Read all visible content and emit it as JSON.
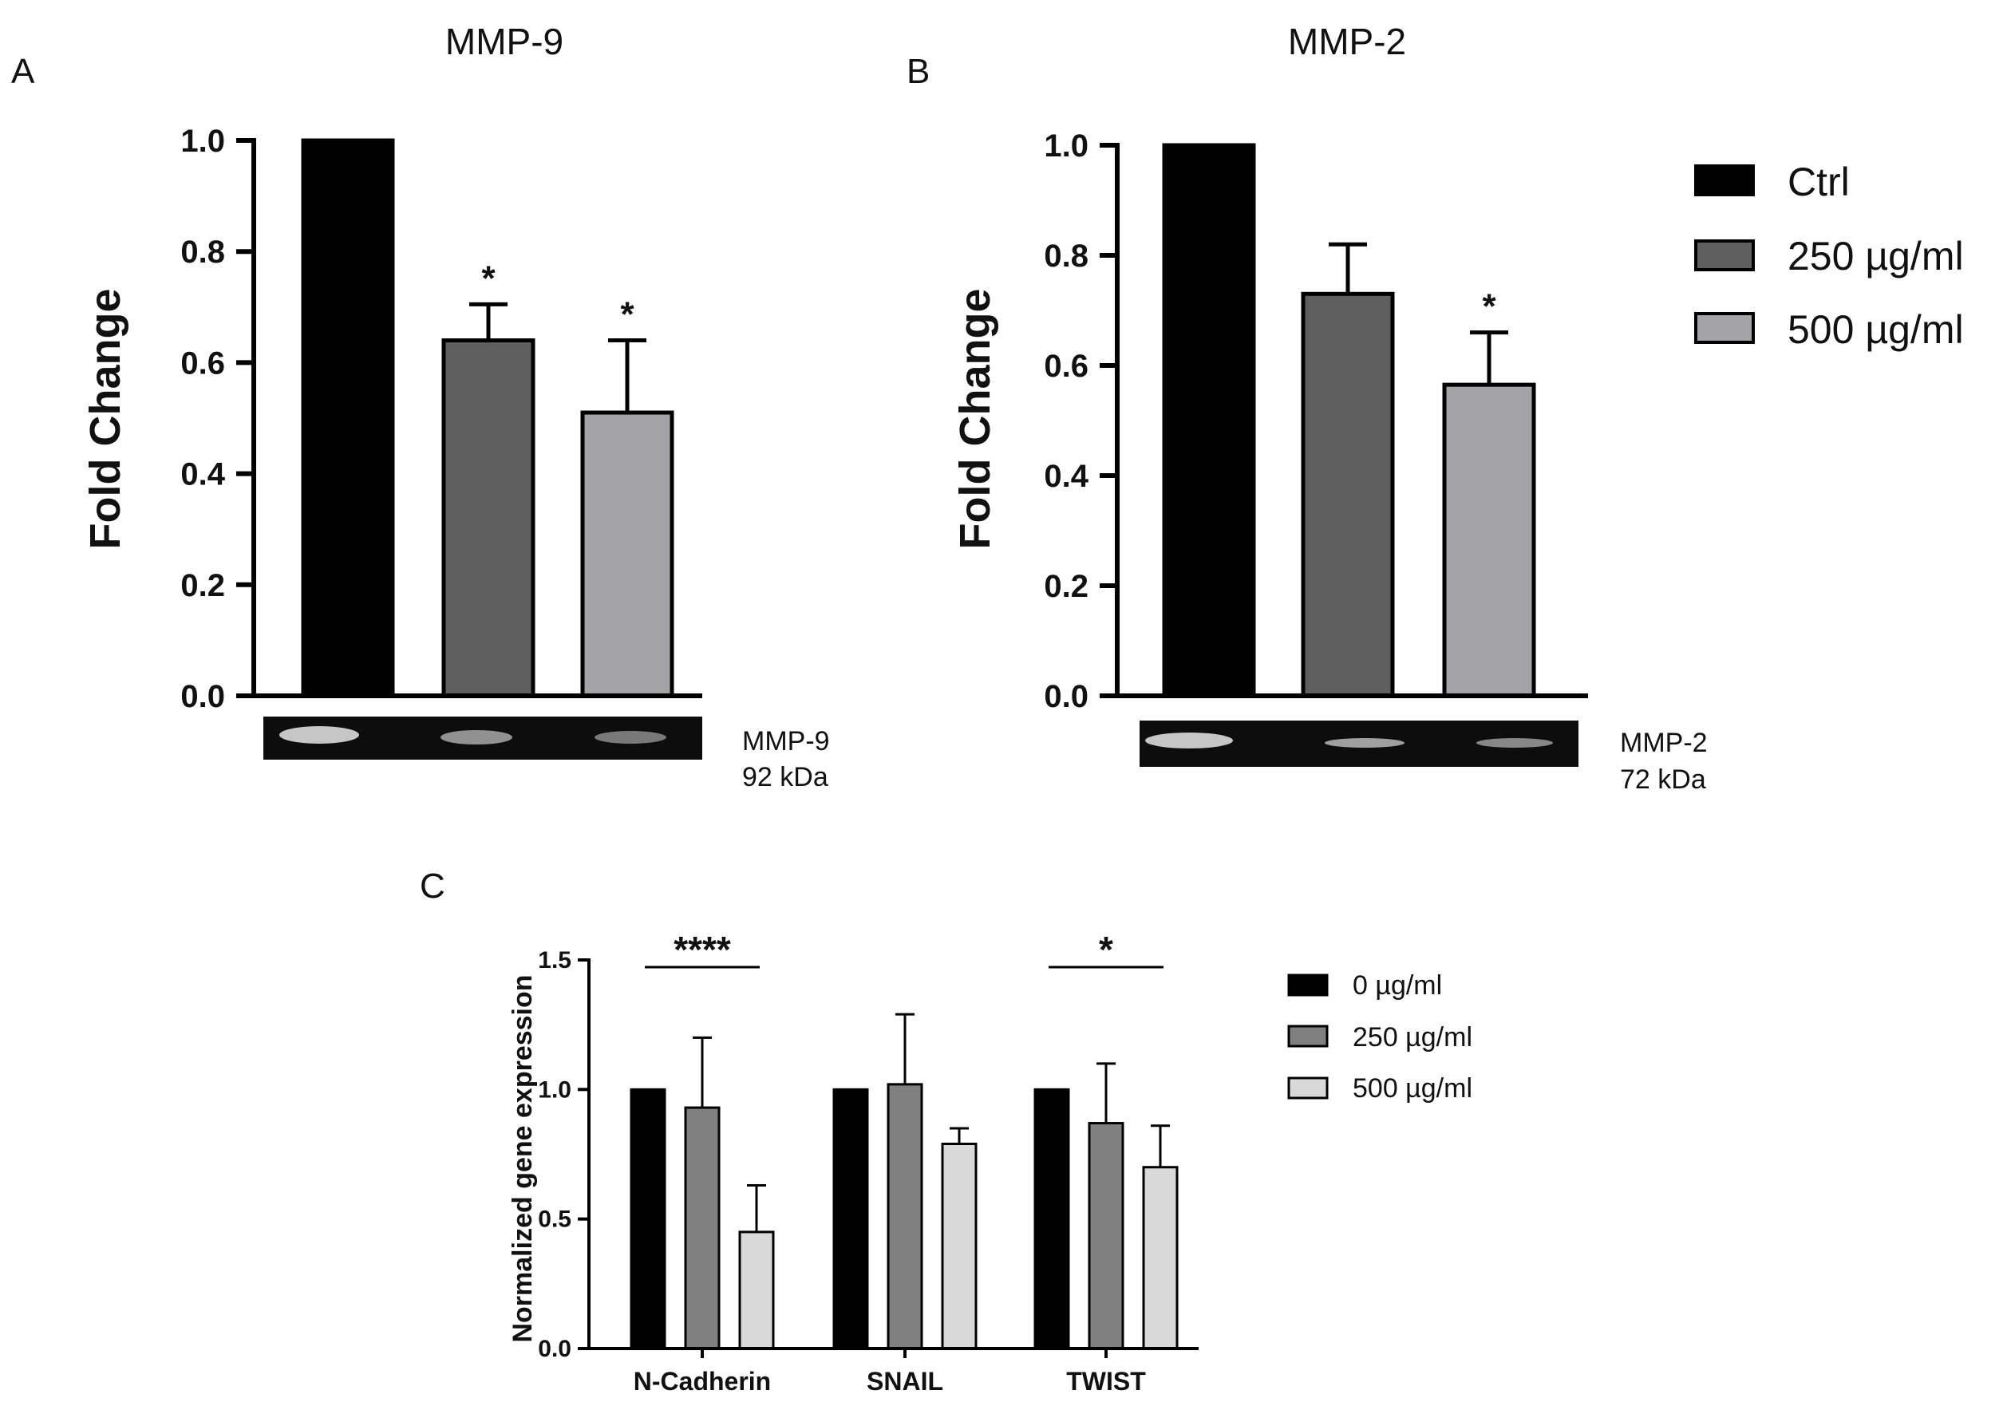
{
  "chart_data": [
    {
      "panel": "A",
      "type": "bar",
      "title": "MMP-9",
      "xlabel": "",
      "ylabel": "Fold Change",
      "ylim": [
        0,
        1.0
      ],
      "yticks": [
        "0.0",
        "0.2",
        "0.4",
        "0.6",
        "0.8",
        "1.0"
      ],
      "categories": [
        "Ctrl",
        "250 µg/ml",
        "500 µg/ml"
      ],
      "values": [
        1.0,
        0.64,
        0.51
      ],
      "errors": [
        0,
        0.065,
        0.13
      ],
      "significance": [
        "",
        "*",
        "*"
      ],
      "colors": [
        "#000000",
        "#5f5f5f",
        "#a3a3a8"
      ],
      "blot": {
        "label": "MMP-9",
        "size": "92 kDa"
      }
    },
    {
      "panel": "B",
      "type": "bar",
      "title": "MMP-2",
      "xlabel": "",
      "ylabel": "Fold Change",
      "ylim": [
        0,
        1.0
      ],
      "yticks": [
        "0.0",
        "0.2",
        "0.4",
        "0.6",
        "0.8",
        "1.0"
      ],
      "categories": [
        "Ctrl",
        "250 µg/ml",
        "500 µg/ml"
      ],
      "values": [
        1.0,
        0.73,
        0.565
      ],
      "errors": [
        0,
        0.09,
        0.095
      ],
      "significance": [
        "",
        "",
        "*"
      ],
      "colors": [
        "#000000",
        "#5f5f5f",
        "#a3a3a8"
      ],
      "blot": {
        "label": "MMP-2",
        "size": "72 kDa"
      },
      "legend": [
        "Ctrl",
        "250 µg/ml",
        "500 µg/ml"
      ],
      "legend_placement": "right"
    },
    {
      "panel": "C",
      "type": "bar",
      "title": "",
      "xlabel": "",
      "ylabel": "Normalized gene expression",
      "ylim": [
        0,
        1.5
      ],
      "yticks": [
        "0.0",
        "0.5",
        "1.0",
        "1.5"
      ],
      "categories": [
        "N-Cadherin",
        "SNAIL",
        "TWIST"
      ],
      "series": [
        {
          "name": "0 µg/ml",
          "values": [
            1.0,
            1.0,
            1.0
          ],
          "errors": [
            0,
            0,
            0
          ],
          "color": "#000000"
        },
        {
          "name": "250 µg/ml",
          "values": [
            0.93,
            1.02,
            0.87
          ],
          "errors": [
            0.27,
            0.27,
            0.23
          ],
          "color": "#808080"
        },
        {
          "name": "500 µg/ml",
          "values": [
            0.45,
            0.79,
            0.7
          ],
          "errors": [
            0.18,
            0.06,
            0.16
          ],
          "color": "#d9d9d9"
        }
      ],
      "significance": [
        {
          "category": "N-Cadherin",
          "label": "****"
        },
        {
          "category": "TWIST",
          "label": "*"
        }
      ],
      "legend_placement": "right"
    }
  ]
}
